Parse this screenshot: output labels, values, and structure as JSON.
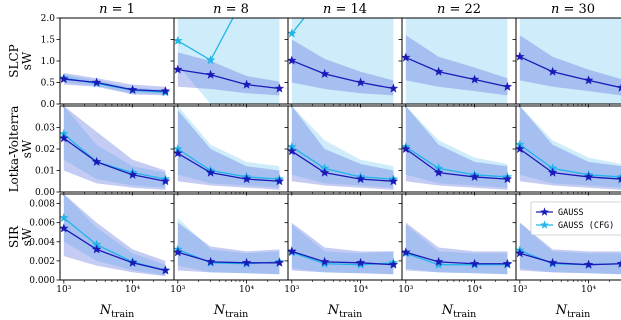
{
  "chart_data": {
    "type": "line",
    "layout": "grid 3 rows x 5 columns, shared x per column, shared y per row",
    "x_scale": "log",
    "x_values": [
      1000,
      3000,
      10000,
      30000
    ],
    "xticks": [
      "10³",
      "10⁴"
    ],
    "xlabel_main": "N",
    "xlabel_sub": "train",
    "columns": [
      {
        "n_label": "n",
        "n_value": "1"
      },
      {
        "n_label": "n",
        "n_value": "8"
      },
      {
        "n_label": "n",
        "n_value": "14"
      },
      {
        "n_label": "n",
        "n_value": "22"
      },
      {
        "n_label": "n",
        "n_value": "30"
      }
    ],
    "rows": [
      {
        "name": "SLCP",
        "ylabel": "sW",
        "ylim": [
          0,
          2.0
        ],
        "yticks": [
          "0.0",
          "0.5",
          "1.0",
          "1.5",
          "2.0"
        ],
        "ytick_values": [
          0,
          0.5,
          1.0,
          1.5,
          2.0
        ],
        "panels": [
          {
            "gauss": [
              0.58,
              0.5,
              0.33,
              0.3
            ],
            "cfg": [
              0.6,
              0.48,
              0.32,
              0.27
            ],
            "band_gauss": [
              [
                0.45,
                0.72
              ],
              [
                0.4,
                0.6
              ],
              [
                0.22,
                0.45
              ],
              [
                0.2,
                0.4
              ]
            ],
            "band_cfg": [
              [
                0.5,
                0.68
              ],
              [
                0.42,
                0.55
              ],
              [
                0.25,
                0.38
              ],
              [
                0.22,
                0.33
              ]
            ]
          },
          {
            "gauss": [
              0.8,
              0.68,
              0.45,
              0.36
            ],
            "cfg": [
              1.47,
              1.02,
              2.6,
              2.6
            ],
            "band_gauss": [
              [
                0.4,
                1.2
              ],
              [
                0.35,
                1.0
              ],
              [
                0.25,
                0.65
              ],
              [
                0.2,
                0.52
              ]
            ],
            "band_cfg": [
              [
                0.9,
                2.0
              ],
              [
                0.0,
                2.0
              ],
              [
                0.0,
                2.0
              ],
              [
                0.0,
                2.0
              ]
            ]
          },
          {
            "gauss": [
              1.01,
              0.7,
              0.5,
              0.36
            ],
            "cfg": [
              1.64,
              2.6,
              2.6,
              2.6
            ],
            "band_gauss": [
              [
                0.5,
                1.5
              ],
              [
                0.35,
                1.05
              ],
              [
                0.25,
                0.75
              ],
              [
                0.2,
                0.55
              ]
            ],
            "band_cfg": [
              [
                0.0,
                2.0
              ],
              [
                0.0,
                2.0
              ],
              [
                0.0,
                2.0
              ],
              [
                0.0,
                2.0
              ]
            ]
          },
          {
            "gauss": [
              1.08,
              0.75,
              0.57,
              0.4
            ],
            "cfg": [],
            "band_gauss": [
              [
                0.55,
                1.6
              ],
              [
                0.4,
                1.1
              ],
              [
                0.3,
                0.85
              ],
              [
                0.2,
                0.6
              ]
            ],
            "band_cfg": [
              [
                0.0,
                2.0
              ],
              [
                0.0,
                2.0
              ],
              [
                0.0,
                2.0
              ],
              [
                0.0,
                2.0
              ]
            ]
          },
          {
            "gauss": [
              1.1,
              0.75,
              0.55,
              0.38
            ],
            "cfg": [],
            "band_gauss": [
              [
                0.55,
                1.6
              ],
              [
                0.4,
                1.1
              ],
              [
                0.3,
                0.8
              ],
              [
                0.2,
                0.58
              ]
            ],
            "band_cfg": [
              [
                0.0,
                2.0
              ],
              [
                0.0,
                2.0
              ],
              [
                0.0,
                2.0
              ],
              [
                0.0,
                2.0
              ]
            ]
          }
        ]
      },
      {
        "name": "Lotka-Volterra",
        "ylabel": "sW",
        "ylim": [
          0,
          0.04
        ],
        "yticks": [
          "0.00",
          "0.01",
          "0.02",
          "0.03"
        ],
        "ytick_values": [
          0,
          0.01,
          0.02,
          0.03
        ],
        "panels": [
          {
            "gauss": [
              0.025,
              0.014,
              0.008,
              0.005
            ],
            "cfg": [
              0.027,
              0.014,
              0.009,
              0.006
            ],
            "band_gauss": [
              [
                0.01,
                0.04
              ],
              [
                0.004,
                0.028
              ],
              [
                0.002,
                0.015
              ],
              [
                0.001,
                0.01
              ]
            ],
            "band_cfg": [
              [
                0.015,
                0.04
              ],
              [
                0.006,
                0.022
              ],
              [
                0.003,
                0.012
              ],
              [
                0.002,
                0.009
              ]
            ]
          },
          {
            "gauss": [
              0.018,
              0.009,
              0.006,
              0.005
            ],
            "cfg": [
              0.02,
              0.01,
              0.007,
              0.006
            ],
            "band_gauss": [
              [
                0.005,
                0.038
              ],
              [
                0.003,
                0.02
              ],
              [
                0.002,
                0.012
              ],
              [
                0.001,
                0.01
              ]
            ],
            "band_cfg": [
              [
                0.008,
                0.04
              ],
              [
                0.004,
                0.022
              ],
              [
                0.003,
                0.014
              ],
              [
                0.002,
                0.012
              ]
            ]
          },
          {
            "gauss": [
              0.019,
              0.009,
              0.006,
              0.005
            ],
            "cfg": [
              0.021,
              0.011,
              0.007,
              0.006
            ],
            "band_gauss": [
              [
                0.005,
                0.04
              ],
              [
                0.003,
                0.02
              ],
              [
                0.002,
                0.013
              ],
              [
                0.001,
                0.01
              ]
            ],
            "band_cfg": [
              [
                0.008,
                0.04
              ],
              [
                0.004,
                0.024
              ],
              [
                0.003,
                0.015
              ],
              [
                0.002,
                0.012
              ]
            ]
          },
          {
            "gauss": [
              0.02,
              0.009,
              0.007,
              0.006
            ],
            "cfg": [
              0.021,
              0.011,
              0.008,
              0.007
            ],
            "band_gauss": [
              [
                0.005,
                0.04
              ],
              [
                0.003,
                0.022
              ],
              [
                0.002,
                0.014
              ],
              [
                0.001,
                0.012
              ]
            ],
            "band_cfg": [
              [
                0.008,
                0.04
              ],
              [
                0.004,
                0.024
              ],
              [
                0.003,
                0.016
              ],
              [
                0.002,
                0.013
              ]
            ]
          },
          {
            "gauss": [
              0.02,
              0.009,
              0.007,
              0.006
            ],
            "cfg": [
              0.022,
              0.011,
              0.008,
              0.007
            ],
            "band_gauss": [
              [
                0.005,
                0.04
              ],
              [
                0.003,
                0.022
              ],
              [
                0.002,
                0.014
              ],
              [
                0.001,
                0.012
              ]
            ],
            "band_cfg": [
              [
                0.008,
                0.04
              ],
              [
                0.004,
                0.024
              ],
              [
                0.003,
                0.016
              ],
              [
                0.002,
                0.013
              ]
            ]
          }
        ]
      },
      {
        "name": "SIR",
        "ylabel": "sW",
        "ylim": [
          0,
          0.009
        ],
        "yticks": [
          "0.000",
          "0.002",
          "0.004",
          "0.006",
          "0.008"
        ],
        "ytick_values": [
          0,
          0.002,
          0.004,
          0.006,
          0.008
        ],
        "panels": [
          {
            "gauss": [
              0.0054,
              0.0032,
              0.0018,
              0.001
            ],
            "cfg": [
              0.0065,
              0.0037,
              0.0019,
              0.001
            ],
            "band_gauss": [
              [
                0.0025,
                0.009
              ],
              [
                0.0015,
                0.006
              ],
              [
                0.0008,
                0.0032
              ],
              [
                0.0004,
                0.002
              ]
            ],
            "band_cfg": [
              [
                0.004,
                0.009
              ],
              [
                0.002,
                0.0055
              ],
              [
                0.001,
                0.0028
              ],
              [
                0.0005,
                0.0016
              ]
            ]
          },
          {
            "gauss": [
              0.0029,
              0.0019,
              0.0018,
              0.0018
            ],
            "cfg": [
              0.0032,
              0.0018,
              0.0017,
              0.0019
            ],
            "band_gauss": [
              [
                0.001,
                0.006
              ],
              [
                0.0008,
                0.0035
              ],
              [
                0.0007,
                0.003
              ],
              [
                0.0006,
                0.0032
              ]
            ],
            "band_cfg": [
              [
                0.0015,
                0.0065
              ],
              [
                0.0008,
                0.0032
              ],
              [
                0.0007,
                0.0028
              ],
              [
                0.0006,
                0.003
              ]
            ]
          },
          {
            "gauss": [
              0.003,
              0.0019,
              0.0018,
              0.0016
            ],
            "cfg": [
              0.0029,
              0.0017,
              0.0016,
              0.0018
            ],
            "band_gauss": [
              [
                0.001,
                0.006
              ],
              [
                0.0008,
                0.0034
              ],
              [
                0.0007,
                0.003
              ],
              [
                0.0006,
                0.003
              ]
            ],
            "band_cfg": [
              [
                0.0012,
                0.0058
              ],
              [
                0.0008,
                0.003
              ],
              [
                0.0007,
                0.0028
              ],
              [
                0.0006,
                0.003
              ]
            ]
          },
          {
            "gauss": [
              0.0029,
              0.0019,
              0.0017,
              0.0017
            ],
            "cfg": [
              0.0028,
              0.0016,
              0.0016,
              0.0016
            ],
            "band_gauss": [
              [
                0.001,
                0.006
              ],
              [
                0.0008,
                0.0034
              ],
              [
                0.0007,
                0.003
              ],
              [
                0.0006,
                0.003
              ]
            ],
            "band_cfg": [
              [
                0.0012,
                0.0058
              ],
              [
                0.0008,
                0.003
              ],
              [
                0.0007,
                0.0028
              ],
              [
                0.0006,
                0.0028
              ]
            ]
          },
          {
            "gauss": [
              0.0028,
              0.0018,
              0.0016,
              0.0017
            ],
            "cfg": [
              0.0031,
              0.0017,
              0.0016,
              0.0017
            ],
            "band_gauss": [
              [
                0.001,
                0.006
              ],
              [
                0.0008,
                0.0032
              ],
              [
                0.0007,
                0.003
              ],
              [
                0.0006,
                0.003
              ]
            ],
            "band_cfg": [
              [
                0.0012,
                0.006
              ],
              [
                0.0008,
                0.003
              ],
              [
                0.0007,
                0.0028
              ],
              [
                0.0006,
                0.0028
              ]
            ]
          }
        ]
      }
    ],
    "legend": {
      "placement": "inside row 3, column 5, top",
      "entries": [
        {
          "label": "GAUSS",
          "color": "#1a1ab8",
          "marker": "star"
        },
        {
          "label": "GAUSS (CFG)",
          "color": "#21b5e8",
          "marker": "star"
        }
      ]
    },
    "colors": {
      "gauss_line": "#1a1ab8",
      "gauss_band": "#5a6ee0",
      "cfg_line": "#21b5e8",
      "cfg_band": "#a8dcf5"
    },
    "grid": false
  }
}
